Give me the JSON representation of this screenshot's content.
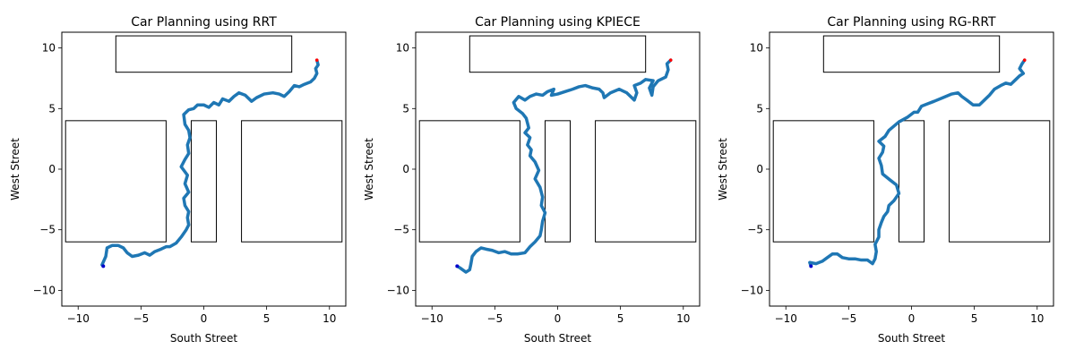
{
  "chart_data": [
    {
      "type": "line",
      "title": "Car Planning using RRT",
      "xlabel": "South Street",
      "ylabel": "West Street",
      "xlim": [
        -11.3,
        11.3
      ],
      "ylim": [
        -11.3,
        11.3
      ],
      "xticks": [
        -10,
        -5,
        0,
        5,
        10
      ],
      "yticks": [
        -10,
        -5,
        0,
        5,
        10
      ],
      "xtick_labels": [
        "−10",
        "−5",
        "0",
        "5",
        "10"
      ],
      "ytick_labels": [
        "−10",
        "−5",
        "0",
        "5",
        "10"
      ],
      "grid": false,
      "obstacles": [
        {
          "x0": -7,
          "y0": 8,
          "x1": 7,
          "y1": 11
        },
        {
          "x0": -11,
          "y0": -6,
          "x1": -3,
          "y1": 4
        },
        {
          "x0": -1,
          "y0": -6,
          "x1": 1,
          "y1": 4
        },
        {
          "x0": 3,
          "y0": -6,
          "x1": 11,
          "y1": 4
        }
      ],
      "start": [
        -8,
        -8
      ],
      "goal": [
        9,
        9
      ],
      "path": [
        [
          -8,
          -8
        ],
        [
          -8.1,
          -7.9
        ],
        [
          -7.8,
          -7.2
        ],
        [
          -7.7,
          -6.5
        ],
        [
          -7.3,
          -6.3
        ],
        [
          -6.8,
          -6.3
        ],
        [
          -6.4,
          -6.5
        ],
        [
          -6.1,
          -6.9
        ],
        [
          -5.7,
          -7.2
        ],
        [
          -5.2,
          -7.1
        ],
        [
          -4.7,
          -6.9
        ],
        [
          -4.3,
          -7.1
        ],
        [
          -3.9,
          -6.8
        ],
        [
          -3.4,
          -6.6
        ],
        [
          -3.0,
          -6.4
        ],
        [
          -2.7,
          -6.4
        ],
        [
          -2.2,
          -6.1
        ],
        [
          -1.8,
          -5.6
        ],
        [
          -1.4,
          -5.0
        ],
        [
          -1.2,
          -4.6
        ],
        [
          -1.3,
          -4.0
        ],
        [
          -1.2,
          -3.5
        ],
        [
          -1.5,
          -3.0
        ],
        [
          -1.6,
          -2.4
        ],
        [
          -1.2,
          -1.9
        ],
        [
          -1.5,
          -1.2
        ],
        [
          -1.3,
          -0.5
        ],
        [
          -1.8,
          0.2
        ],
        [
          -1.5,
          0.8
        ],
        [
          -1.2,
          1.3
        ],
        [
          -1.3,
          2.0
        ],
        [
          -1.1,
          2.6
        ],
        [
          -1.2,
          3.2
        ],
        [
          -1.5,
          3.7
        ],
        [
          -1.6,
          4.5
        ],
        [
          -1.2,
          4.9
        ],
        [
          -0.8,
          5.0
        ],
        [
          -0.5,
          5.3
        ],
        [
          0,
          5.3
        ],
        [
          0.4,
          5.1
        ],
        [
          0.8,
          5.5
        ],
        [
          1.2,
          5.3
        ],
        [
          1.5,
          5.8
        ],
        [
          2.0,
          5.6
        ],
        [
          2.4,
          6.0
        ],
        [
          2.8,
          6.3
        ],
        [
          3.3,
          6.1
        ],
        [
          3.8,
          5.6
        ],
        [
          4.2,
          5.9
        ],
        [
          4.8,
          6.2
        ],
        [
          5.5,
          6.3
        ],
        [
          6.0,
          6.2
        ],
        [
          6.4,
          6.0
        ],
        [
          6.8,
          6.4
        ],
        [
          7.2,
          6.9
        ],
        [
          7.6,
          6.8
        ],
        [
          8.0,
          7.0
        ],
        [
          8.5,
          7.2
        ],
        [
          8.8,
          7.5
        ],
        [
          9.0,
          7.9
        ],
        [
          8.9,
          8.3
        ],
        [
          9.1,
          8.6
        ],
        [
          9.0,
          9.0
        ]
      ]
    },
    {
      "type": "line",
      "title": "Car Planning using KPIECE",
      "xlabel": "South Street",
      "ylabel": "West Street",
      "xlim": [
        -11.3,
        11.3
      ],
      "ylim": [
        -11.3,
        11.3
      ],
      "xticks": [
        -10,
        -5,
        0,
        5,
        10
      ],
      "yticks": [
        -10,
        -5,
        0,
        5,
        10
      ],
      "xtick_labels": [
        "−10",
        "−5",
        "0",
        "5",
        "10"
      ],
      "ytick_labels": [
        "−10",
        "−5",
        "0",
        "5",
        "10"
      ],
      "grid": false,
      "obstacles": [
        {
          "x0": -7,
          "y0": 8,
          "x1": 7,
          "y1": 11
        },
        {
          "x0": -11,
          "y0": -6,
          "x1": -3,
          "y1": 4
        },
        {
          "x0": -1,
          "y0": -6,
          "x1": 1,
          "y1": 4
        },
        {
          "x0": 3,
          "y0": -6,
          "x1": 11,
          "y1": 4
        }
      ],
      "start": [
        -8,
        -8
      ],
      "goal": [
        9,
        9
      ],
      "path": [
        [
          -8,
          -8
        ],
        [
          -7.7,
          -8.2
        ],
        [
          -7.3,
          -8.5
        ],
        [
          -7.0,
          -8.3
        ],
        [
          -6.9,
          -7.8
        ],
        [
          -6.8,
          -7.2
        ],
        [
          -6.5,
          -6.8
        ],
        [
          -6.1,
          -6.5
        ],
        [
          -5.7,
          -6.6
        ],
        [
          -5.2,
          -6.7
        ],
        [
          -4.7,
          -6.9
        ],
        [
          -4.2,
          -6.8
        ],
        [
          -3.7,
          -7.0
        ],
        [
          -3.2,
          -7.0
        ],
        [
          -2.6,
          -6.9
        ],
        [
          -2.2,
          -6.4
        ],
        [
          -1.8,
          -6.0
        ],
        [
          -1.4,
          -5.5
        ],
        [
          -1.3,
          -5.0
        ],
        [
          -1.2,
          -4.3
        ],
        [
          -1.0,
          -3.6
        ],
        [
          -1.3,
          -3.0
        ],
        [
          -1.2,
          -2.3
        ],
        [
          -1.4,
          -1.5
        ],
        [
          -1.8,
          -0.8
        ],
        [
          -1.5,
          -0.1
        ],
        [
          -1.8,
          0.6
        ],
        [
          -2.2,
          1.1
        ],
        [
          -2.1,
          1.6
        ],
        [
          -2.4,
          2.0
        ],
        [
          -2.2,
          2.6
        ],
        [
          -2.6,
          3.0
        ],
        [
          -2.3,
          3.4
        ],
        [
          -2.5,
          4.2
        ],
        [
          -2.8,
          4.6
        ],
        [
          -3.3,
          5.0
        ],
        [
          -3.5,
          5.5
        ],
        [
          -3.1,
          6.0
        ],
        [
          -2.6,
          5.7
        ],
        [
          -2.2,
          6.0
        ],
        [
          -1.7,
          6.2
        ],
        [
          -1.2,
          6.1
        ],
        [
          -0.8,
          6.4
        ],
        [
          -0.3,
          6.6
        ],
        [
          -0.5,
          6.1
        ],
        [
          0,
          6.2
        ],
        [
          0.6,
          6.4
        ],
        [
          1.2,
          6.6
        ],
        [
          1.7,
          6.8
        ],
        [
          2.2,
          6.9
        ],
        [
          2.8,
          6.7
        ],
        [
          3.3,
          6.6
        ],
        [
          3.6,
          6.3
        ],
        [
          3.7,
          5.9
        ],
        [
          4.2,
          6.3
        ],
        [
          4.9,
          6.6
        ],
        [
          5.5,
          6.3
        ],
        [
          6.1,
          5.7
        ],
        [
          6.3,
          6.3
        ],
        [
          6.1,
          6.9
        ],
        [
          6.6,
          7.1
        ],
        [
          7.0,
          7.4
        ],
        [
          7.6,
          7.3
        ],
        [
          7.3,
          6.7
        ],
        [
          7.5,
          6.1
        ],
        [
          7.6,
          6.8
        ],
        [
          8.0,
          7.3
        ],
        [
          8.6,
          7.6
        ],
        [
          8.8,
          8.2
        ],
        [
          8.7,
          8.7
        ],
        [
          9.0,
          9.0
        ]
      ]
    },
    {
      "type": "line",
      "title": "Car Planning using RG-RRT",
      "xlabel": "South Street",
      "ylabel": "West Street",
      "xlim": [
        -11.3,
        11.3
      ],
      "ylim": [
        -11.3,
        11.3
      ],
      "xticks": [
        -10,
        -5,
        0,
        5,
        10
      ],
      "yticks": [
        -10,
        -5,
        0,
        5,
        10
      ],
      "xtick_labels": [
        "−10",
        "−5",
        "0",
        "5",
        "10"
      ],
      "ytick_labels": [
        "−10",
        "−5",
        "0",
        "5",
        "10"
      ],
      "grid": false,
      "obstacles": [
        {
          "x0": -7,
          "y0": 8,
          "x1": 7,
          "y1": 11
        },
        {
          "x0": -11,
          "y0": -6,
          "x1": -3,
          "y1": 4
        },
        {
          "x0": -1,
          "y0": -6,
          "x1": 1,
          "y1": 4
        },
        {
          "x0": 3,
          "y0": -6,
          "x1": 11,
          "y1": 4
        }
      ],
      "start": [
        -8,
        -8
      ],
      "goal": [
        9,
        9
      ],
      "path": [
        [
          -8,
          -8
        ],
        [
          -8.1,
          -7.7
        ],
        [
          -7.6,
          -7.8
        ],
        [
          -7.1,
          -7.6
        ],
        [
          -6.7,
          -7.3
        ],
        [
          -6.3,
          -7.0
        ],
        [
          -5.9,
          -7.0
        ],
        [
          -5.5,
          -7.3
        ],
        [
          -5.0,
          -7.4
        ],
        [
          -4.5,
          -7.4
        ],
        [
          -4.0,
          -7.5
        ],
        [
          -3.5,
          -7.5
        ],
        [
          -3.1,
          -7.8
        ],
        [
          -2.9,
          -7.4
        ],
        [
          -2.8,
          -6.8
        ],
        [
          -2.9,
          -6.2
        ],
        [
          -2.6,
          -5.6
        ],
        [
          -2.6,
          -5.0
        ],
        [
          -2.4,
          -4.4
        ],
        [
          -2.2,
          -3.9
        ],
        [
          -1.9,
          -3.5
        ],
        [
          -1.8,
          -3.0
        ],
        [
          -1.4,
          -2.6
        ],
        [
          -1.0,
          -2.0
        ],
        [
          -1.2,
          -1.3
        ],
        [
          -1.7,
          -0.9
        ],
        [
          -2.3,
          -0.4
        ],
        [
          -2.4,
          0.3
        ],
        [
          -2.6,
          0.9
        ],
        [
          -2.3,
          1.4
        ],
        [
          -2.2,
          1.9
        ],
        [
          -2.6,
          2.3
        ],
        [
          -2.1,
          2.7
        ],
        [
          -1.8,
          3.2
        ],
        [
          -1.0,
          3.9
        ],
        [
          -0.3,
          4.3
        ],
        [
          0.2,
          4.7
        ],
        [
          0.5,
          4.7
        ],
        [
          0.8,
          5.2
        ],
        [
          1.3,
          5.4
        ],
        [
          1.8,
          5.6
        ],
        [
          2.5,
          5.9
        ],
        [
          3.2,
          6.2
        ],
        [
          3.7,
          6.3
        ],
        [
          4.0,
          6.0
        ],
        [
          4.4,
          5.7
        ],
        [
          4.9,
          5.3
        ],
        [
          5.4,
          5.3
        ],
        [
          5.8,
          5.7
        ],
        [
          6.2,
          6.1
        ],
        [
          6.6,
          6.6
        ],
        [
          7.1,
          6.9
        ],
        [
          7.5,
          7.1
        ],
        [
          7.9,
          7.0
        ],
        [
          8.3,
          7.4
        ],
        [
          8.6,
          7.7
        ],
        [
          8.9,
          7.9
        ],
        [
          8.6,
          8.3
        ],
        [
          8.8,
          8.7
        ],
        [
          9.0,
          9.0
        ]
      ]
    }
  ],
  "colors": {
    "path": "#1f77b4",
    "start": "#0000cc",
    "goal": "#ff0000",
    "obstacle": "#000000"
  }
}
